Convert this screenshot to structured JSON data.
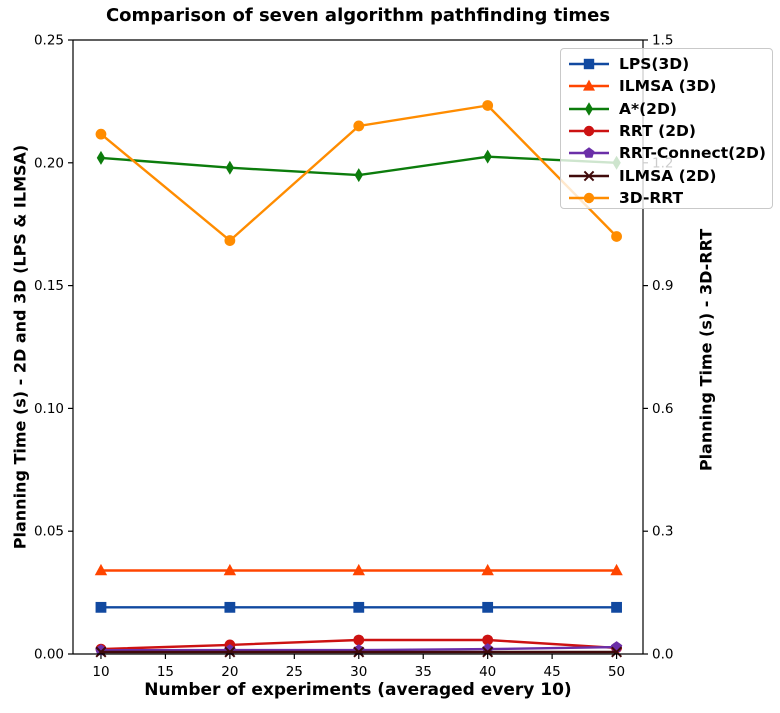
{
  "title": "Comparison of seven algorithm pathfinding times",
  "axes": {
    "xlabel": "Number of experiments (averaged every 10)",
    "ylabel_left": "Planning Time (s) - 2D and 3D (LPS & ILMSA)",
    "ylabel_right": "Planning Time (s) - 3D-RRT",
    "x_tick_labels": [
      "10",
      "15",
      "20",
      "25",
      "30",
      "35",
      "40",
      "45",
      "50"
    ],
    "y_left_tick_labels": [
      "0.00",
      "0.05",
      "0.10",
      "0.15",
      "0.20",
      "0.25"
    ],
    "y_right_tick_labels": [
      "0.0",
      "0.3",
      "0.6",
      "0.9",
      "1.2",
      "1.5"
    ],
    "grid": "off",
    "legend_position": "upper right"
  },
  "chart_data": {
    "type": "line",
    "x": [
      10,
      20,
      30,
      40,
      50
    ],
    "x_range": [
      7.83,
      52.05
    ],
    "ylim_left": [
      0,
      0.25
    ],
    "ylim_right": [
      0,
      1.5
    ],
    "series": [
      {
        "name": "LPS(3D)",
        "axis": "left",
        "color": "#1149a0",
        "marker": "square",
        "values": [
          0.019,
          0.019,
          0.019,
          0.019,
          0.019
        ]
      },
      {
        "name": "ILMSA (3D)",
        "axis": "left",
        "color": "#ff4500",
        "marker": "triangle",
        "values": [
          0.034,
          0.034,
          0.034,
          0.034,
          0.034
        ]
      },
      {
        "name": "A*(2D)",
        "axis": "left",
        "color": "#0c7c0c",
        "marker": "diamond",
        "values": [
          0.202,
          0.198,
          0.195,
          0.2025,
          0.2
        ]
      },
      {
        "name": "RRT (2D)",
        "axis": "left",
        "color": "#cc1212",
        "marker": "circle",
        "values": [
          0.002,
          0.0037,
          0.0057,
          0.0057,
          0.0025
        ]
      },
      {
        "name": "RRT-Connect(2D)",
        "axis": "left",
        "color": "#6b2fa8",
        "marker": "pentagon",
        "values": [
          0.0015,
          0.0016,
          0.0016,
          0.002,
          0.0028
        ]
      },
      {
        "name": "ILMSA (2D)",
        "axis": "left",
        "color": "#400a0a",
        "marker": "x",
        "values": [
          0.0008,
          0.0008,
          0.0008,
          0.0008,
          0.0008
        ]
      },
      {
        "name": "3D-RRT",
        "axis": "right",
        "color": "#ff8c00",
        "marker": "circle",
        "values": [
          1.27,
          1.01,
          1.29,
          1.34,
          1.02
        ]
      }
    ]
  }
}
